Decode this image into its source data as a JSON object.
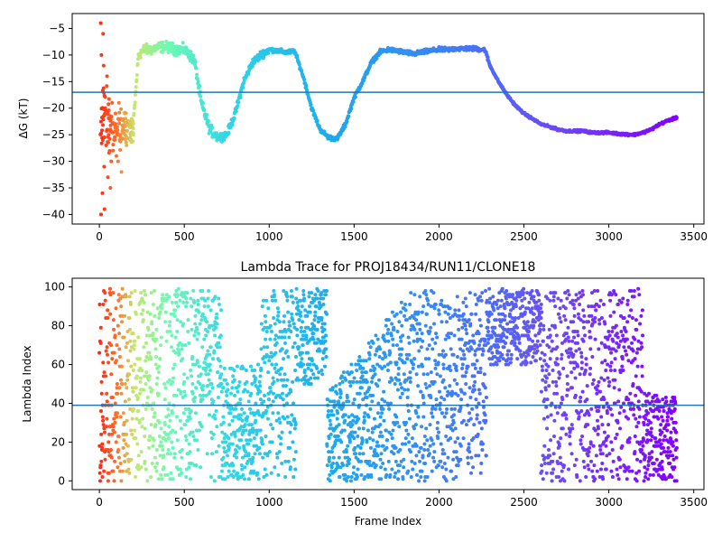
{
  "colors": {
    "hline": "#1f77b4",
    "cmap": "rainbow_r (red at frame 0 → violet at final frame)"
  },
  "chart_data": [
    {
      "type": "scatter",
      "title": "",
      "xlabel": "",
      "ylabel": "ΔG (kT)",
      "xlim": [
        -160,
        3560
      ],
      "ylim": [
        -41.8,
        -2.2
      ],
      "x_ticks": [
        0,
        500,
        1000,
        1500,
        2000,
        2500,
        3000,
        3500
      ],
      "x_tick_labels": [
        "0",
        "500",
        "1000",
        "1500",
        "2000",
        "2500",
        "3000",
        "3500"
      ],
      "y_ticks": [
        -40,
        -35,
        -30,
        -25,
        -20,
        -15,
        -10,
        -5
      ],
      "y_tick_labels": [
        "−40",
        "−35",
        "−30",
        "−25",
        "−20",
        "−15",
        "−10",
        "−5"
      ],
      "hline": -17,
      "grid": false,
      "legend": "none",
      "series_trend": {
        "x": [
          0,
          40,
          80,
          120,
          160,
          200,
          230,
          260,
          300,
          350,
          400,
          450,
          500,
          560,
          600,
          650,
          700,
          750,
          800,
          850,
          900,
          950,
          1000,
          1050,
          1100,
          1150,
          1200,
          1250,
          1300,
          1350,
          1400,
          1450,
          1500,
          1550,
          1600,
          1650,
          1700,
          1750,
          1800,
          1850,
          1900,
          1950,
          2000,
          2050,
          2100,
          2150,
          2200,
          2270,
          2300,
          2350,
          2400,
          2450,
          2500,
          2550,
          2600,
          2650,
          2700,
          2750,
          2800,
          2850,
          2900,
          2950,
          3000,
          3050,
          3100,
          3150,
          3200,
          3250,
          3300,
          3350,
          3400
        ],
        "y": [
          -25,
          -25,
          -25,
          -25,
          -24,
          -23,
          -10,
          -9,
          -9,
          -8.5,
          -8.5,
          -9,
          -9,
          -11,
          -19,
          -24,
          -25.5,
          -25,
          -21,
          -15,
          -11.5,
          -10,
          -9,
          -9.2,
          -9.5,
          -9.3,
          -14,
          -20,
          -24,
          -25.5,
          -25.8,
          -23,
          -18,
          -15,
          -11.5,
          -9.5,
          -9,
          -9.2,
          -9.5,
          -9.8,
          -9.5,
          -9.2,
          -9,
          -9,
          -8.8,
          -8.8,
          -8.8,
          -9,
          -12,
          -15,
          -17.5,
          -19.5,
          -21,
          -22,
          -23,
          -23.5,
          -24,
          -24.3,
          -24.3,
          -24.3,
          -24.6,
          -24.6,
          -24.6,
          -24.8,
          -24.9,
          -25,
          -24.6,
          -24,
          -23,
          -22.3,
          -21.8
        ]
      },
      "early_scatter": {
        "x": [
          8,
          10,
          12,
          15,
          18,
          20,
          22,
          25,
          28,
          30,
          35,
          40,
          45,
          50,
          55,
          60,
          65,
          70,
          75,
          80,
          85,
          90,
          95,
          100,
          105,
          110,
          115,
          120,
          125,
          130,
          140,
          150,
          160,
          170,
          180,
          190,
          200
        ],
        "y": [
          -4,
          -40,
          -10,
          -20,
          -36,
          -26,
          -6,
          -12,
          -31,
          -39,
          -20,
          -27,
          -14,
          -33,
          -25,
          -22,
          -35,
          -30,
          -19,
          -28,
          -23,
          -26,
          -21,
          -29,
          -24,
          -30,
          -19,
          -26,
          -22,
          -32,
          -24,
          -21,
          -27,
          -23,
          -26,
          -22,
          -25
        ]
      }
    },
    {
      "type": "scatter",
      "title": "Lambda Trace for PROJ18434/RUN11/CLONE18",
      "xlabel": "Frame Index",
      "ylabel": "Lambda Index",
      "xlim": [
        -160,
        3560
      ],
      "ylim": [
        -4.5,
        104.5
      ],
      "x_ticks": [
        0,
        500,
        1000,
        1500,
        2000,
        2500,
        3000,
        3500
      ],
      "x_tick_labels": [
        "0",
        "500",
        "1000",
        "1500",
        "2000",
        "2500",
        "3000",
        "3500"
      ],
      "y_ticks": [
        0,
        20,
        40,
        60,
        80,
        100
      ],
      "y_tick_labels": [
        "0",
        "20",
        "40",
        "60",
        "80",
        "100"
      ],
      "hline": 39,
      "grid": false,
      "legend": "none",
      "frames": 3400,
      "value_range": [
        0,
        99
      ],
      "segments": [
        {
          "x_start": 0,
          "x_end": 60,
          "spread": "full 0–99"
        },
        {
          "x_start": 60,
          "x_end": 560,
          "spread": "full 0–99"
        },
        {
          "x_start": 560,
          "x_end": 720,
          "spread": "upper 40–99, sparse lower"
        },
        {
          "x_start": 720,
          "x_end": 950,
          "spread": "lower 0–60"
        },
        {
          "x_start": 950,
          "x_end": 1160,
          "spread": "full 0–99"
        },
        {
          "x_start": 1160,
          "x_end": 1340,
          "spread": "upper 50–99"
        },
        {
          "x_start": 1340,
          "x_end": 1800,
          "spread": "lower 0–60, rising"
        },
        {
          "x_start": 1800,
          "x_end": 2280,
          "spread": "full 0–99"
        },
        {
          "x_start": 2280,
          "x_end": 2600,
          "spread": "upper 60–99"
        },
        {
          "x_start": 2600,
          "x_end": 3200,
          "spread": "full 0–99"
        },
        {
          "x_start": 3200,
          "x_end": 3400,
          "spread": "lower 0–45"
        }
      ]
    }
  ]
}
